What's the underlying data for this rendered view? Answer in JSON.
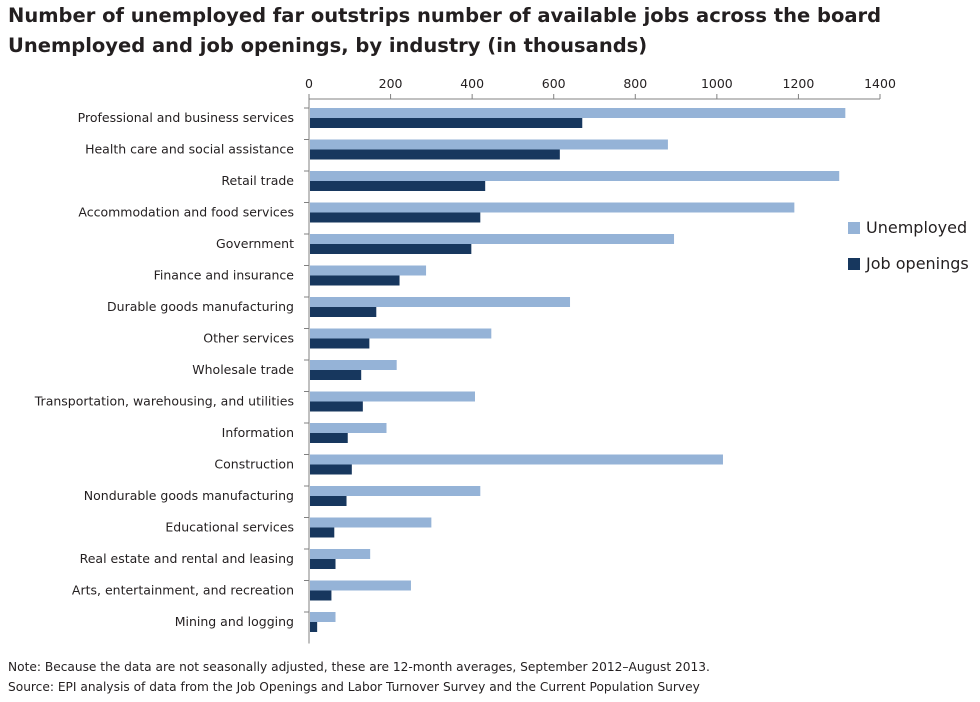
{
  "title": "Number of unemployed far outstrips number of available jobs across the board",
  "subtitle": "Unemployed and job openings, by industry (in thousands)",
  "note": "Note: Because the data are not seasonally adjusted, these are 12-month averages, September 2012–August 2013.",
  "source": "Source: EPI analysis of data from the Job Openings and Labor Turnover Survey and the Current Population Survey",
  "colors": {
    "unemployed": "#95b3d7",
    "job_openings": "#17375e"
  },
  "chart_data": {
    "type": "bar",
    "orientation": "horizontal",
    "title": "Number of unemployed far outstrips number of available jobs across the board",
    "subtitle": "Unemployed and job openings, by industry (in thousands)",
    "xlim": [
      0,
      1400
    ],
    "xticks": [
      0,
      200,
      400,
      600,
      800,
      1000,
      1200,
      1400
    ],
    "xaxis_position": "top",
    "grid": false,
    "legend_position": "right",
    "categories": [
      "Professional and business services",
      "Health care and social assistance",
      "Retail trade",
      "Accommodation and food services",
      "Government",
      "Finance and insurance",
      "Durable goods manufacturing",
      "Other services",
      "Wholesale trade",
      "Transportation, warehousing, and utilities",
      "Information",
      "Construction",
      "Nondurable goods manufacturing",
      "Educational services",
      "Real estate and rental and leasing",
      "Arts, entertainment, and recreation",
      "Mining and logging"
    ],
    "series": [
      {
        "name": "Unemployed",
        "values": [
          1315,
          880,
          1300,
          1190,
          895,
          287,
          640,
          447,
          215,
          407,
          190,
          1015,
          420,
          300,
          150,
          250,
          65
        ]
      },
      {
        "name": "Job openings",
        "values": [
          670,
          615,
          432,
          420,
          398,
          222,
          165,
          148,
          128,
          132,
          95,
          105,
          92,
          62,
          65,
          55,
          20
        ]
      }
    ]
  }
}
